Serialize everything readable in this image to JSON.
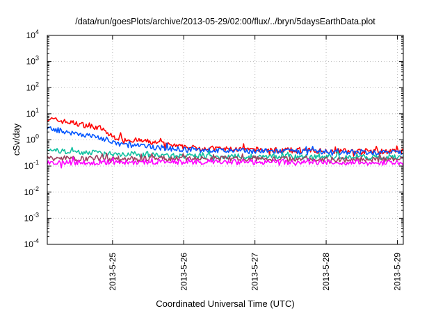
{
  "chart_data": {
    "type": "line",
    "title": "/data/run/goesPlots/archive/2013-05-29/02:00/flux/../bryn/5daysEarthData.plot",
    "xlabel": "Coordinated Universal Time (UTC)",
    "ylabel": "cSv/day",
    "yscale": "log",
    "ylim": [
      0.0001,
      10000
    ],
    "xlim": [
      "2013-05-24 02:00",
      "2013-05-29 02:00"
    ],
    "y_ticks": [
      {
        "value": 0.0001,
        "base": "10",
        "exp": "-4"
      },
      {
        "value": 0.001,
        "base": "10",
        "exp": "-3"
      },
      {
        "value": 0.01,
        "base": "10",
        "exp": "-2"
      },
      {
        "value": 0.1,
        "base": "10",
        "exp": "-1"
      },
      {
        "value": 1,
        "base": "10",
        "exp": "0"
      },
      {
        "value": 10,
        "base": "10",
        "exp": "1"
      },
      {
        "value": 100,
        "base": "10",
        "exp": "2"
      },
      {
        "value": 1000,
        "base": "10",
        "exp": "3"
      },
      {
        "value": 10000,
        "base": "10",
        "exp": "4"
      }
    ],
    "x_ticks": [
      "2013-5-25",
      "2013-5-26",
      "2013-5-27",
      "2013-5-28",
      "2013-5-29"
    ],
    "grid": true,
    "legend": "none",
    "series": [
      {
        "color": "#ff0000",
        "x": [
          "2013-05-24 02:00",
          "2013-05-24 08:00",
          "2013-05-24 14:00",
          "2013-05-24 20:00",
          "2013-05-25 00:00",
          "2013-05-25 06:00",
          "2013-05-25 12:00",
          "2013-05-25 18:00",
          "2013-05-26 00:00",
          "2013-05-26 12:00",
          "2013-05-27 00:00",
          "2013-05-27 12:00",
          "2013-05-28 00:00",
          "2013-05-28 12:00",
          "2013-05-29 00:00",
          "2013-05-29 02:00"
        ],
        "y": [
          6.5,
          5.0,
          3.8,
          2.8,
          1.3,
          1.0,
          0.85,
          0.65,
          0.52,
          0.45,
          0.42,
          0.4,
          0.38,
          0.37,
          0.36,
          0.36
        ]
      },
      {
        "color": "#0055ff",
        "x": [
          "2013-05-24 02:00",
          "2013-05-24 08:00",
          "2013-05-24 14:00",
          "2013-05-24 20:00",
          "2013-05-25 00:00",
          "2013-05-25 06:00",
          "2013-05-25 12:00",
          "2013-05-25 18:00",
          "2013-05-26 00:00",
          "2013-05-26 12:00",
          "2013-05-27 00:00",
          "2013-05-27 12:00",
          "2013-05-28 00:00",
          "2013-05-28 12:00",
          "2013-05-29 00:00",
          "2013-05-29 02:00"
        ],
        "y": [
          2.8,
          2.1,
          1.6,
          1.2,
          0.75,
          0.62,
          0.55,
          0.48,
          0.42,
          0.39,
          0.37,
          0.36,
          0.35,
          0.34,
          0.33,
          0.33
        ]
      },
      {
        "color": "#10c0a0",
        "x": [
          "2013-05-24 02:00",
          "2013-05-24 12:00",
          "2013-05-25 00:00",
          "2013-05-25 12:00",
          "2013-05-26 00:00",
          "2013-05-27 00:00",
          "2013-05-28 00:00",
          "2013-05-29 02:00"
        ],
        "y": [
          0.4,
          0.34,
          0.3,
          0.27,
          0.24,
          0.23,
          0.22,
          0.22
        ]
      },
      {
        "color": "#a04060",
        "x": [
          "2013-05-24 02:00",
          "2013-05-25 00:00",
          "2013-05-26 00:00",
          "2013-05-27 00:00",
          "2013-05-28 00:00",
          "2013-05-29 02:00"
        ],
        "y": [
          0.2,
          0.19,
          0.19,
          0.19,
          0.18,
          0.18
        ]
      },
      {
        "color": "#ff00ff",
        "x": [
          "2013-05-24 02:00",
          "2013-05-25 00:00",
          "2013-05-26 00:00",
          "2013-05-27 00:00",
          "2013-05-28 00:00",
          "2013-05-29 02:00"
        ],
        "y": [
          0.13,
          0.14,
          0.14,
          0.14,
          0.14,
          0.13
        ]
      }
    ]
  }
}
